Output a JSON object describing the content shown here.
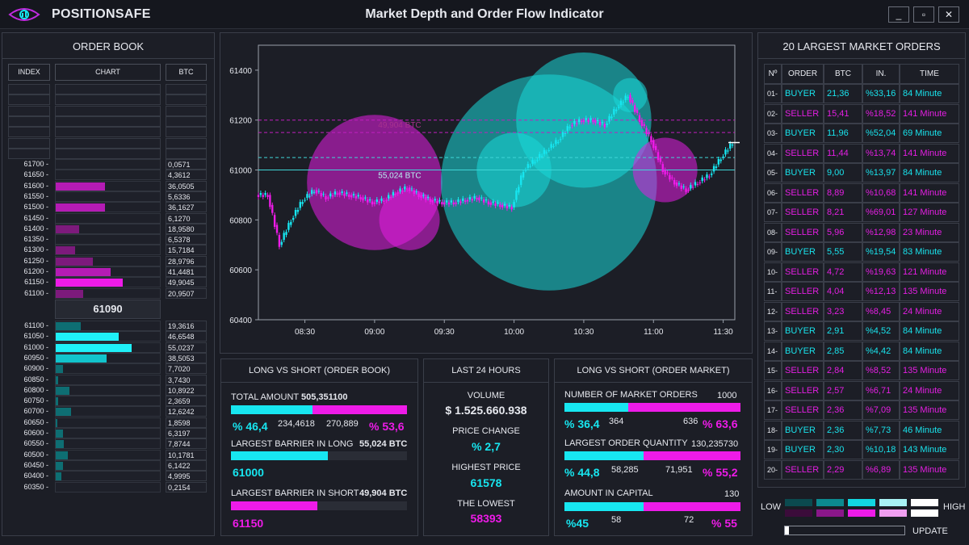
{
  "app": {
    "brand": "POSITIONSAFE",
    "title": "Market Depth and Order Flow Indicator",
    "window_buttons": [
      "_",
      "▫",
      "✕"
    ]
  },
  "order_book": {
    "title": "ORDER BOOK",
    "headers": [
      "INDEX",
      "CHART",
      "BTC"
    ],
    "current_price": "61090",
    "asks": [
      {
        "index": "61700 -",
        "btc": "0,0571",
        "level": 0.0
      },
      {
        "index": "61650 -",
        "btc": "4,3612",
        "level": 0.0
      },
      {
        "index": "61600 -",
        "btc": "36,0505",
        "level": 0.36
      },
      {
        "index": "61550 -",
        "btc": "5,6336",
        "level": 0.0
      },
      {
        "index": "61500 -",
        "btc": "36,1627",
        "level": 0.36
      },
      {
        "index": "61450 -",
        "btc": "6,1270",
        "level": 0.0
      },
      {
        "index": "61400 -",
        "btc": "18,9580",
        "level": 0.17
      },
      {
        "index": "61350 -",
        "btc": "6,5378",
        "level": 0.0
      },
      {
        "index": "61300 -",
        "btc": "15,7184",
        "level": 0.14
      },
      {
        "index": "61250 -",
        "btc": "28,9796",
        "level": 0.27
      },
      {
        "index": "61200 -",
        "btc": "41,4481",
        "level": 0.4
      },
      {
        "index": "61150 -",
        "btc": "49,9045",
        "level": 0.49
      },
      {
        "index": "61100 -",
        "btc": "20,9507",
        "level": 0.2
      }
    ],
    "bids": [
      {
        "index": "61100 -",
        "btc": "19,3616",
        "level": 0.18
      },
      {
        "index": "61050 -",
        "btc": "46,6548",
        "level": 0.46
      },
      {
        "index": "61000 -",
        "btc": "55,0237",
        "level": 0.55
      },
      {
        "index": "60950 -",
        "btc": "38,5053",
        "level": 0.37
      },
      {
        "index": "60900 -",
        "btc": "7,7020",
        "level": 0.05
      },
      {
        "index": "60850 -",
        "btc": "3,7430",
        "level": 0.02
      },
      {
        "index": "60800 -",
        "btc": "10,8922",
        "level": 0.1
      },
      {
        "index": "60750 -",
        "btc": "2,3659",
        "level": 0.02
      },
      {
        "index": "60700 -",
        "btc": "12,6242",
        "level": 0.11
      },
      {
        "index": "60650 -",
        "btc": "1,8598",
        "level": 0.01
      },
      {
        "index": "60600 -",
        "btc": "6,3197",
        "level": 0.05
      },
      {
        "index": "60550 -",
        "btc": "7,8744",
        "level": 0.06
      },
      {
        "index": "60500 -",
        "btc": "10,1781",
        "level": 0.09
      },
      {
        "index": "60450 -",
        "btc": "6,1422",
        "level": 0.05
      },
      {
        "index": "60400 -",
        "btc": "4,9995",
        "level": 0.04
      },
      {
        "index": "60350 -",
        "btc": "0,2154",
        "level": 0.0
      }
    ]
  },
  "chart_data": {
    "type": "line",
    "title": "",
    "xlabel": "",
    "ylabel": "",
    "x_ticks": [
      "08:30",
      "09:00",
      "09:30",
      "10:00",
      "10:30",
      "11:00",
      "11:30"
    ],
    "y_ticks": [
      60400,
      60600,
      60800,
      61000,
      61200,
      61400
    ],
    "ylim": [
      60400,
      61500
    ],
    "series": [
      {
        "x": [
          "08:10",
          "08:15",
          "08:20",
          "08:25",
          "08:30",
          "08:35",
          "08:40",
          "08:45",
          "08:50",
          "08:55",
          "09:00",
          "09:05",
          "09:10",
          "09:15",
          "09:20",
          "09:25",
          "09:30",
          "09:35",
          "09:40",
          "09:45",
          "09:50",
          "09:55",
          "10:00",
          "10:05",
          "10:10",
          "10:15",
          "10:20",
          "10:25",
          "10:30",
          "10:35",
          "10:40",
          "10:45",
          "10:50",
          "10:55",
          "11:00",
          "11:05",
          "11:10",
          "11:15",
          "11:20",
          "11:25",
          "11:30"
        ],
        "values": [
          60900,
          60700,
          60800,
          60880,
          60920,
          60890,
          60910,
          60900,
          60890,
          60870,
          60880,
          60910,
          60930,
          60900,
          60880,
          60870,
          60870,
          60880,
          60890,
          60870,
          60860,
          60850,
          61000,
          61040,
          61080,
          61120,
          61180,
          61200,
          61200,
          61180,
          61250,
          61300,
          61200,
          61120,
          61000,
          60950,
          60920,
          60950,
          60980,
          61050,
          61110
        ]
      }
    ],
    "annotations": [
      {
        "text": "55,024 BTC",
        "x": "09:05",
        "y": 61000
      },
      {
        "text": "49,904 BTC",
        "x": "09:05",
        "y": 61150
      }
    ],
    "reference_lines": [
      61000,
      61050,
      61150,
      61200
    ],
    "bubbles": [
      {
        "x": "09:00",
        "y": 60950,
        "size": 0.55,
        "side": "seller"
      },
      {
        "x": "09:15",
        "y": 60800,
        "size": 0.18,
        "side": "seller"
      },
      {
        "x": "10:15",
        "y": 60950,
        "size": 0.95,
        "side": "buyer"
      },
      {
        "x": "10:30",
        "y": 61200,
        "size": 0.55,
        "side": "buyer"
      },
      {
        "x": "10:00",
        "y": 61000,
        "size": 0.25,
        "side": "buyer"
      },
      {
        "x": "10:50",
        "y": 61300,
        "size": 0.05,
        "side": "buyer"
      },
      {
        "x": "11:05",
        "y": 61000,
        "size": 0.2,
        "side": "seller"
      }
    ],
    "grid": false
  },
  "largest_orders": {
    "title": "20 LARGEST MARKET ORDERS",
    "headers": [
      "Nº",
      "ORDER",
      "BTC",
      "IN.",
      "TIME"
    ],
    "rows": [
      {
        "n": "01-",
        "order": "BUYER",
        "btc": "21,36",
        "in": "%33,16",
        "time": "84 Minute"
      },
      {
        "n": "02-",
        "order": "SELLER",
        "btc": "15,41",
        "in": "%18,52",
        "time": "141 Minute"
      },
      {
        "n": "03-",
        "order": "BUYER",
        "btc": "11,96",
        "in": "%52,04",
        "time": "69 Minute"
      },
      {
        "n": "04-",
        "order": "SELLER",
        "btc": "11,44",
        "in": "%13,74",
        "time": "141 Minute"
      },
      {
        "n": "05-",
        "order": "BUYER",
        "btc": "9,00",
        "in": "%13,97",
        "time": "84 Minute"
      },
      {
        "n": "06-",
        "order": "SELLER",
        "btc": "8,89",
        "in": "%10,68",
        "time": "141 Minute"
      },
      {
        "n": "07-",
        "order": "SELLER",
        "btc": "8,21",
        "in": "%69,01",
        "time": "127 Minute"
      },
      {
        "n": "08-",
        "order": "SELLER",
        "btc": "5,96",
        "in": "%12,98",
        "time": "23 Minute"
      },
      {
        "n": "09-",
        "order": "BUYER",
        "btc": "5,55",
        "in": "%19,54",
        "time": "83 Minute"
      },
      {
        "n": "10-",
        "order": "SELLER",
        "btc": "4,72",
        "in": "%19,63",
        "time": "121 Minute"
      },
      {
        "n": "11-",
        "order": "SELLER",
        "btc": "4,04",
        "in": "%12,13",
        "time": "135 Minute"
      },
      {
        "n": "12-",
        "order": "SELLER",
        "btc": "3,23",
        "in": "%8,45",
        "time": "24 Minute"
      },
      {
        "n": "13-",
        "order": "BUYER",
        "btc": "2,91",
        "in": "%4,52",
        "time": "84 Minute"
      },
      {
        "n": "14-",
        "order": "BUYER",
        "btc": "2,85",
        "in": "%4,42",
        "time": "84 Minute"
      },
      {
        "n": "15-",
        "order": "SELLER",
        "btc": "2,84",
        "in": "%8,52",
        "time": "135 Minute"
      },
      {
        "n": "16-",
        "order": "SELLER",
        "btc": "2,57",
        "in": "%6,71",
        "time": "24 Minute"
      },
      {
        "n": "17-",
        "order": "SELLER",
        "btc": "2,36",
        "in": "%7,09",
        "time": "135 Minute"
      },
      {
        "n": "18-",
        "order": "BUYER",
        "btc": "2,36",
        "in": "%7,73",
        "time": "46 Minute"
      },
      {
        "n": "19-",
        "order": "BUYER",
        "btc": "2,30",
        "in": "%10,18",
        "time": "143 Minute"
      },
      {
        "n": "20-",
        "order": "SELLER",
        "btc": "2,29",
        "in": "%6,89",
        "time": "135 Minute"
      }
    ]
  },
  "long_short_book": {
    "title": "LONG VS SHORT (ORDER BOOK)",
    "total_amount_label": "TOTAL AMOUNT",
    "total_amount_value": "505,351100",
    "long_pct": "% 46,4",
    "long_amount": "234,4618",
    "short_amount": "270,889",
    "short_pct": "% 53,6",
    "long_share": 0.464,
    "barrier_long_label": "LARGEST BARRIER IN LONG",
    "barrier_long_value": "55,024 BTC",
    "barrier_long_price": "61000",
    "barrier_long_level": 0.55,
    "barrier_short_label": "LARGEST BARRIER IN SHORT",
    "barrier_short_value": "49,904 BTC",
    "barrier_short_price": "61150",
    "barrier_short_level": 0.49
  },
  "last24": {
    "title": "LAST 24 HOURS",
    "volume_label": "VOLUME",
    "volume_value": "$ 1.525.660.938",
    "price_change_label": "PRICE CHANGE",
    "price_change_value": "% 2,7",
    "highest_label": "HIGHEST PRICE",
    "highest_value": "61578",
    "lowest_label": "THE LOWEST",
    "lowest_value": "58393"
  },
  "long_short_market": {
    "title": "LONG VS SHORT (ORDER MARKET)",
    "num_orders_label": "NUMBER OF MARKET ORDERS",
    "num_orders_value": "1000",
    "num_long_pct": "% 36,4",
    "num_long": "364",
    "num_short": "636",
    "num_short_pct": "% 63,6",
    "num_share": 0.364,
    "largest_qty_label": "LARGEST ORDER QUANTITY",
    "largest_qty_value": "130,235730",
    "qty_long_pct": "% 44,8",
    "qty_long": "58,285",
    "qty_short": "71,951",
    "qty_short_pct": "% 55,2",
    "qty_share": 0.448,
    "capital_label": "AMOUNT IN CAPITAL",
    "capital_value": "130",
    "cap_long_pct": "%45",
    "cap_long": "58",
    "cap_short": "72",
    "cap_short_pct": "% 55",
    "cap_share": 0.45
  },
  "legend": {
    "low_label": "LOW",
    "high_label": "HIGH",
    "update_label": "UPDATE",
    "buyer_scale": [
      "#0b4a4f",
      "#0c8a90",
      "#12d6e0",
      "#a8f2f4",
      "#ffffff"
    ],
    "seller_scale": [
      "#3b0c3a",
      "#8a178a",
      "#ee1be8",
      "#f09ef0",
      "#ffffff"
    ]
  },
  "colors": {
    "buyer": "#19e3ec",
    "seller": "#e41ee2",
    "background": "#1a1c24"
  }
}
